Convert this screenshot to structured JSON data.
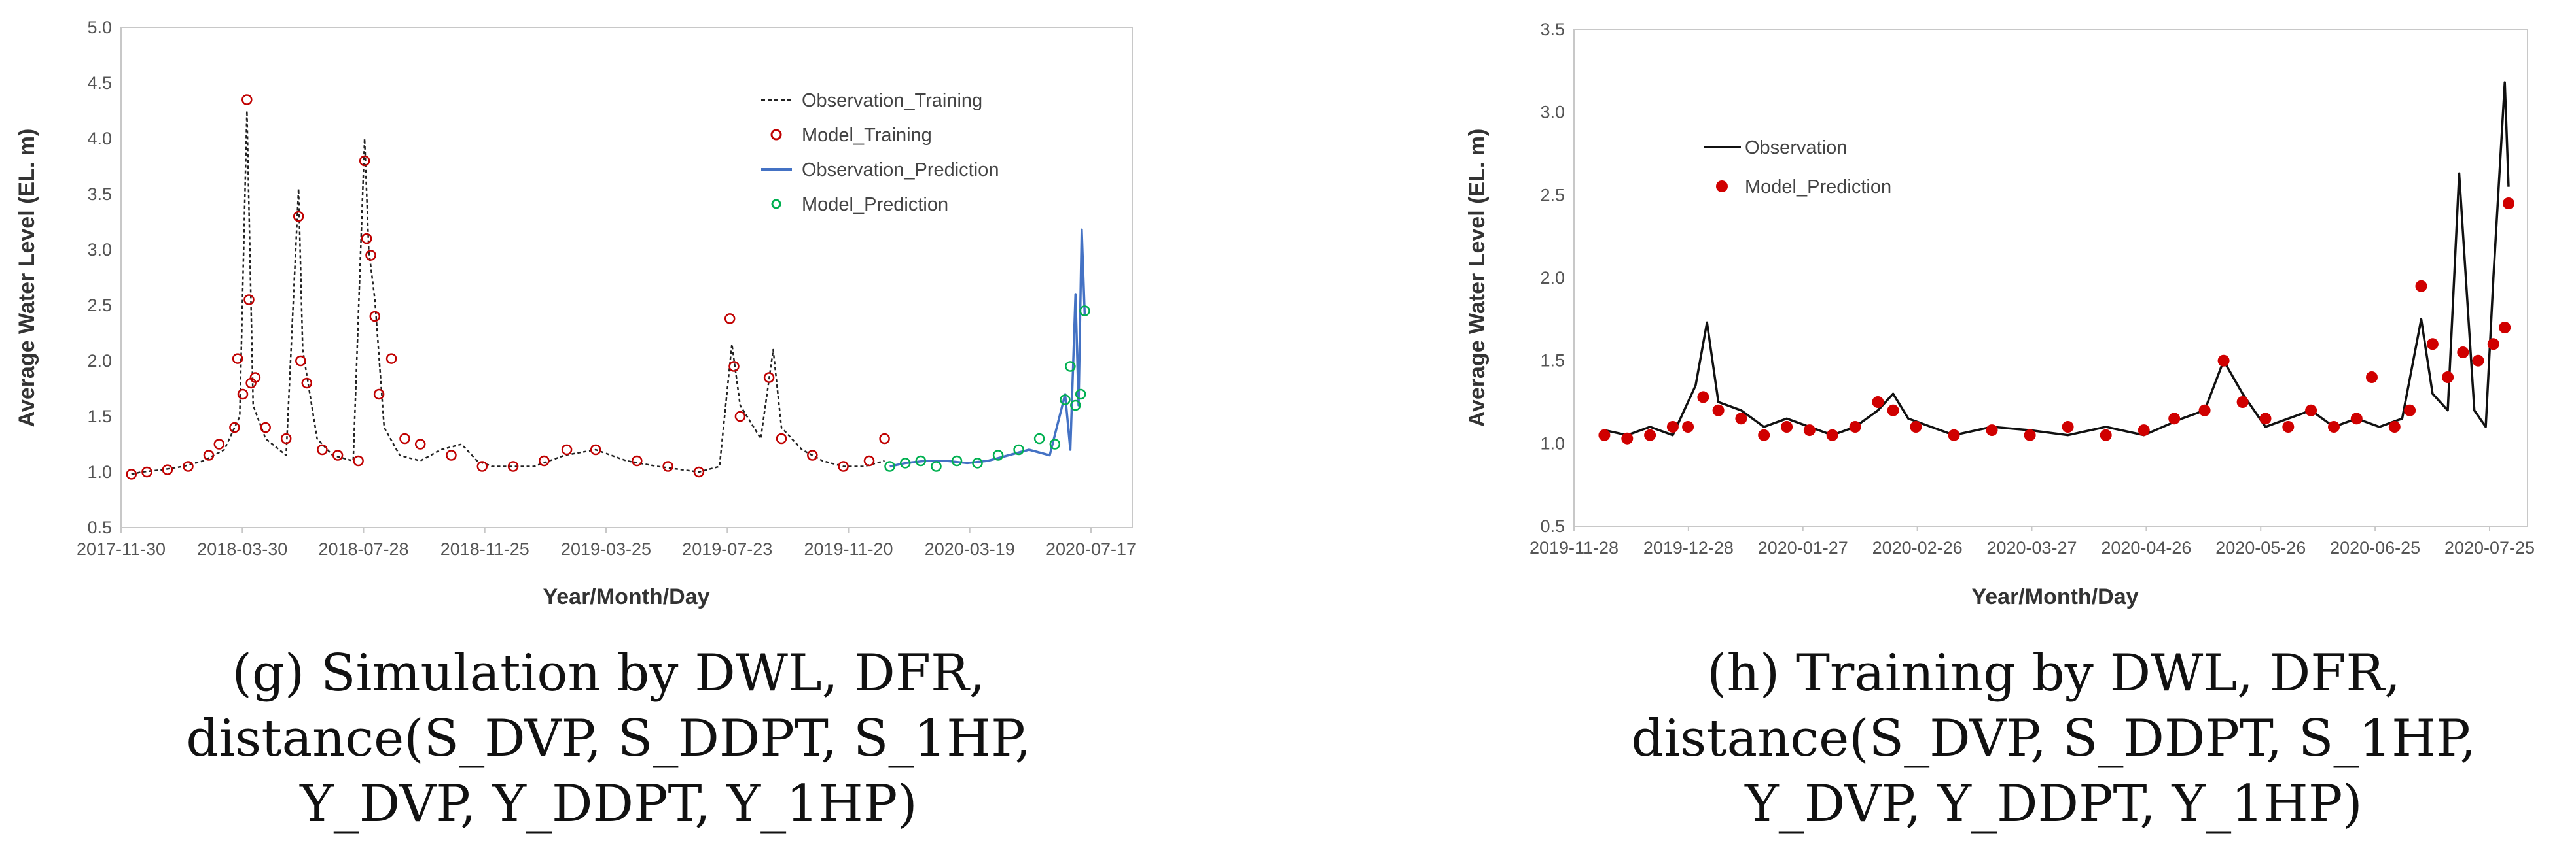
{
  "chart_data": [
    {
      "type": "line",
      "id": "g",
      "xlabel": "Year/Month/Day",
      "ylabel": "Average Water Level (EL. m)",
      "ylim": [
        0.5,
        5.0
      ],
      "y_ticks": [
        "0.5",
        "1.0",
        "1.5",
        "2.0",
        "2.5",
        "3.0",
        "3.5",
        "4.0",
        "4.5",
        "5.0"
      ],
      "x_ticks": [
        "2017-11-30",
        "2018-03-30",
        "2018-07-28",
        "2018-11-25",
        "2019-03-25",
        "2019-07-23",
        "2019-11-20",
        "2020-03-19",
        "2020-07-17"
      ],
      "legend": [
        "Observation_Training",
        "Model_Training",
        "Observation_Prediction",
        "Model_Prediction"
      ],
      "legend_position": "top-right",
      "colors": {
        "obs_train": "#222222",
        "model_train": "#c00000",
        "obs_pred": "#4472c4",
        "model_pred": "#00b050"
      },
      "series": [
        {
          "name": "Observation_Training",
          "style": "dashed",
          "points": [
            [
              10,
              0.98
            ],
            [
              20,
              1.0
            ],
            [
              40,
              1.02
            ],
            [
              60,
              1.05
            ],
            [
              80,
              1.1
            ],
            [
              100,
              1.2
            ],
            [
              115,
              1.5
            ],
            [
              122,
              4.25
            ],
            [
              128,
              1.6
            ],
            [
              140,
              1.3
            ],
            [
              160,
              1.15
            ],
            [
              172,
              3.55
            ],
            [
              176,
              2.1
            ],
            [
              190,
              1.3
            ],
            [
              205,
              1.15
            ],
            [
              225,
              1.1
            ],
            [
              236,
              4.0
            ],
            [
              240,
              3.0
            ],
            [
              246,
              2.55
            ],
            [
              255,
              1.4
            ],
            [
              270,
              1.15
            ],
            [
              290,
              1.1
            ],
            [
              310,
              1.2
            ],
            [
              330,
              1.25
            ],
            [
              345,
              1.1
            ],
            [
              360,
              1.05
            ],
            [
              400,
              1.05
            ],
            [
              430,
              1.15
            ],
            [
              460,
              1.2
            ],
            [
              490,
              1.1
            ],
            [
              520,
              1.05
            ],
            [
              560,
              1.0
            ],
            [
              580,
              1.05
            ],
            [
              592,
              2.15
            ],
            [
              600,
              1.6
            ],
            [
              620,
              1.3
            ],
            [
              632,
              2.1
            ],
            [
              640,
              1.4
            ],
            [
              660,
              1.2
            ],
            [
              680,
              1.1
            ],
            [
              700,
              1.05
            ],
            [
              720,
              1.05
            ],
            [
              740,
              1.1
            ]
          ]
        },
        {
          "name": "Model_Training",
          "style": "circles",
          "points": [
            [
              10,
              0.98
            ],
            [
              25,
              1.0
            ],
            [
              45,
              1.02
            ],
            [
              65,
              1.05
            ],
            [
              85,
              1.15
            ],
            [
              95,
              1.25
            ],
            [
              110,
              1.4
            ],
            [
              113,
              2.02
            ],
            [
              118,
              1.7
            ],
            [
              122,
              4.35
            ],
            [
              124,
              2.55
            ],
            [
              126,
              1.8
            ],
            [
              130,
              1.85
            ],
            [
              140,
              1.4
            ],
            [
              160,
              1.3
            ],
            [
              172,
              3.3
            ],
            [
              174,
              2.0
            ],
            [
              180,
              1.8
            ],
            [
              195,
              1.2
            ],
            [
              210,
              1.15
            ],
            [
              230,
              1.1
            ],
            [
              236,
              3.8
            ],
            [
              238,
              3.1
            ],
            [
              242,
              2.95
            ],
            [
              246,
              2.4
            ],
            [
              250,
              1.7
            ],
            [
              262,
              2.02
            ],
            [
              275,
              1.3
            ],
            [
              290,
              1.25
            ],
            [
              320,
              1.15
            ],
            [
              350,
              1.05
            ],
            [
              380,
              1.05
            ],
            [
              410,
              1.1
            ],
            [
              432,
              1.2
            ],
            [
              460,
              1.2
            ],
            [
              500,
              1.1
            ],
            [
              530,
              1.05
            ],
            [
              560,
              1.0
            ],
            [
              590,
              2.38
            ],
            [
              594,
              1.95
            ],
            [
              600,
              1.5
            ],
            [
              628,
              1.85
            ],
            [
              640,
              1.3
            ],
            [
              670,
              1.15
            ],
            [
              700,
              1.05
            ],
            [
              725,
              1.1
            ],
            [
              740,
              1.3
            ]
          ]
        },
        {
          "name": "Observation_Prediction",
          "style": "line",
          "points": [
            [
              745,
              1.05
            ],
            [
              760,
              1.08
            ],
            [
              780,
              1.1
            ],
            [
              800,
              1.1
            ],
            [
              820,
              1.08
            ],
            [
              840,
              1.1
            ],
            [
              860,
              1.15
            ],
            [
              880,
              1.2
            ],
            [
              900,
              1.15
            ],
            [
              915,
              1.7
            ],
            [
              920,
              1.2
            ],
            [
              925,
              2.6
            ],
            [
              928,
              1.6
            ],
            [
              931,
              3.18
            ],
            [
              934,
              2.4
            ]
          ]
        },
        {
          "name": "Model_Prediction",
          "style": "circles",
          "points": [
            [
              745,
              1.05
            ],
            [
              760,
              1.08
            ],
            [
              775,
              1.1
            ],
            [
              790,
              1.05
            ],
            [
              810,
              1.1
            ],
            [
              830,
              1.08
            ],
            [
              850,
              1.15
            ],
            [
              870,
              1.2
            ],
            [
              890,
              1.3
            ],
            [
              905,
              1.25
            ],
            [
              915,
              1.65
            ],
            [
              920,
              1.95
            ],
            [
              925,
              1.6
            ],
            [
              930,
              1.7
            ],
            [
              934,
              2.45
            ]
          ]
        }
      ]
    },
    {
      "type": "line",
      "id": "h",
      "xlabel": "Year/Month/Day",
      "ylabel": "Average Water Level (EL. m)",
      "ylim": [
        0.5,
        3.5
      ],
      "y_ticks": [
        "0.5",
        "1.0",
        "1.5",
        "2.0",
        "2.5",
        "3.0",
        "3.5"
      ],
      "x_ticks": [
        "2019-11-28",
        "2019-12-28",
        "2020-01-27",
        "2020-02-26",
        "2020-03-27",
        "2020-04-26",
        "2020-05-26",
        "2020-06-25",
        "2020-07-25"
      ],
      "legend": [
        "Observation",
        "Model_Prediction"
      ],
      "legend_position": "top-left",
      "colors": {
        "obs": "#111111",
        "model": "#d00000"
      },
      "series": [
        {
          "name": "Observation",
          "style": "line",
          "points": [
            [
              8,
              1.08
            ],
            [
              14,
              1.05
            ],
            [
              20,
              1.1
            ],
            [
              26,
              1.05
            ],
            [
              32,
              1.35
            ],
            [
              35,
              1.73
            ],
            [
              38,
              1.25
            ],
            [
              44,
              1.2
            ],
            [
              50,
              1.1
            ],
            [
              56,
              1.15
            ],
            [
              62,
              1.1
            ],
            [
              68,
              1.05
            ],
            [
              74,
              1.1
            ],
            [
              80,
              1.2
            ],
            [
              84,
              1.3
            ],
            [
              88,
              1.15
            ],
            [
              94,
              1.1
            ],
            [
              100,
              1.05
            ],
            [
              110,
              1.1
            ],
            [
              120,
              1.08
            ],
            [
              130,
              1.05
            ],
            [
              140,
              1.1
            ],
            [
              150,
              1.05
            ],
            [
              160,
              1.15
            ],
            [
              166,
              1.2
            ],
            [
              171,
              1.5
            ],
            [
              176,
              1.3
            ],
            [
              182,
              1.1
            ],
            [
              188,
              1.15
            ],
            [
              194,
              1.2
            ],
            [
              200,
              1.1
            ],
            [
              206,
              1.15
            ],
            [
              212,
              1.1
            ],
            [
              218,
              1.15
            ],
            [
              223,
              1.75
            ],
            [
              226,
              1.3
            ],
            [
              230,
              1.2
            ],
            [
              233,
              2.63
            ],
            [
              237,
              1.2
            ],
            [
              240,
              1.1
            ],
            [
              242,
              2.0
            ],
            [
              245,
              3.18
            ],
            [
              246,
              2.55
            ]
          ]
        },
        {
          "name": "Model_Prediction",
          "style": "dots",
          "points": [
            [
              8,
              1.05
            ],
            [
              14,
              1.03
            ],
            [
              20,
              1.05
            ],
            [
              26,
              1.1
            ],
            [
              30,
              1.1
            ],
            [
              34,
              1.28
            ],
            [
              38,
              1.2
            ],
            [
              44,
              1.15
            ],
            [
              50,
              1.05
            ],
            [
              56,
              1.1
            ],
            [
              62,
              1.08
            ],
            [
              68,
              1.05
            ],
            [
              74,
              1.1
            ],
            [
              80,
              1.25
            ],
            [
              84,
              1.2
            ],
            [
              90,
              1.1
            ],
            [
              100,
              1.05
            ],
            [
              110,
              1.08
            ],
            [
              120,
              1.05
            ],
            [
              130,
              1.1
            ],
            [
              140,
              1.05
            ],
            [
              150,
              1.08
            ],
            [
              158,
              1.15
            ],
            [
              166,
              1.2
            ],
            [
              171,
              1.5
            ],
            [
              176,
              1.25
            ],
            [
              182,
              1.15
            ],
            [
              188,
              1.1
            ],
            [
              194,
              1.2
            ],
            [
              200,
              1.1
            ],
            [
              206,
              1.15
            ],
            [
              210,
              1.4
            ],
            [
              216,
              1.1
            ],
            [
              220,
              1.2
            ],
            [
              223,
              1.95
            ],
            [
              226,
              1.6
            ],
            [
              230,
              1.4
            ],
            [
              234,
              1.55
            ],
            [
              238,
              1.5
            ],
            [
              242,
              1.6
            ],
            [
              245,
              1.7
            ],
            [
              246,
              2.45
            ]
          ]
        }
      ]
    }
  ],
  "captions": {
    "g": {
      "line1": "(g) Simulation by DWL, DFR,",
      "line2": "distance(S_DVP, S_DDPT, S_1HP,",
      "line3": "Y_DVP, Y_DDPT, Y_1HP)"
    },
    "h": {
      "line1": "(h) Training by DWL, DFR,",
      "line2": "distance(S_DVP, S_DDPT, S_1HP,",
      "line3": "Y_DVP, Y_DDPT, Y_1HP)"
    }
  }
}
